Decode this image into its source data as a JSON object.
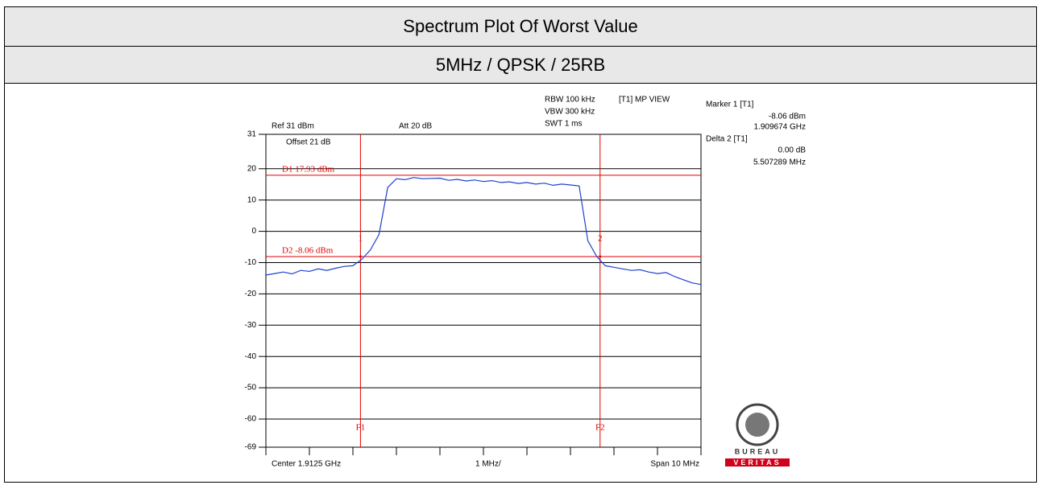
{
  "header": {
    "title": "Spectrum Plot Of Worst Value",
    "subtitle": "5MHz / QPSK / 25RB"
  },
  "chart_data": {
    "type": "line",
    "color": "#1f3fd0",
    "x": [
      1.9075,
      1.9077,
      1.9079,
      1.9081,
      1.9083,
      1.9085,
      1.9087,
      1.9089,
      1.9091,
      1.9093,
      1.9095,
      1.9097,
      1.9099,
      1.9101,
      1.9103,
      1.9105,
      1.9107,
      1.9109,
      1.9111,
      1.9113,
      1.9115,
      1.9117,
      1.9119,
      1.9121,
      1.9123,
      1.9125,
      1.9127,
      1.9129,
      1.9131,
      1.9133,
      1.9135,
      1.9137,
      1.9139,
      1.9141,
      1.9143,
      1.9145,
      1.9147,
      1.9149,
      1.9151,
      1.9153,
      1.9155,
      1.9157,
      1.9159,
      1.9161,
      1.9163,
      1.9165,
      1.9167,
      1.9169,
      1.9171,
      1.9173,
      1.9175
    ],
    "values": [
      -14,
      -13.5,
      -13,
      -13.6,
      -12.5,
      -12.8,
      -12,
      -12.5,
      -11.8,
      -11.2,
      -11,
      -9,
      -6,
      -1,
      14,
      16.8,
      16.5,
      17.2,
      16.8,
      16.9,
      17,
      16.3,
      16.6,
      16.1,
      16.4,
      15.9,
      16.2,
      15.6,
      15.8,
      15.3,
      15.6,
      15.1,
      15.4,
      14.7,
      15.1,
      14.8,
      14.5,
      -3,
      -8,
      -11,
      -11.5,
      -12,
      -12.5,
      -12.3,
      -13,
      -13.5,
      -13.2,
      -14.5,
      -15.5,
      -16.5,
      -17
    ],
    "xlim": [
      1.9075,
      1.9175
    ],
    "xticks": [
      1.9075,
      1.9085,
      1.9095,
      1.9105,
      1.9115,
      1.9125,
      1.9135,
      1.9145,
      1.9155,
      1.9165,
      1.9175
    ],
    "ylim": [
      -69,
      31
    ],
    "yticks": [
      31,
      20,
      10,
      0,
      -10,
      -20,
      -30,
      -40,
      -50,
      -60,
      -69
    ],
    "grid": true,
    "display_lines": [
      {
        "label": "D1 17.93 dBm",
        "value": 17.93
      },
      {
        "label": "D2 -8.06 dBm",
        "value": -8.06
      }
    ],
    "freq_lines": [
      {
        "label": "F1",
        "value": 1.909674
      },
      {
        "label": "F2",
        "value": 1.915181
      }
    ],
    "markers": [
      {
        "label": "1",
        "x": 1.909674,
        "y": -8.06
      },
      {
        "label": "2",
        "x": 1.915181,
        "y": -8.06
      }
    ],
    "annotations": {
      "ref": "Ref 31 dBm",
      "att": "Att  20 dB",
      "offset": "Offset 21 dB",
      "rbw": "RBW 100 kHz",
      "vbw": "VBW 300 kHz",
      "swt": "SWT 1 ms",
      "view": "[T1] MP VIEW",
      "marker1": "Marker 1 [T1]",
      "marker1_level": "-8.06 dBm",
      "marker1_freq": "1.909674 GHz",
      "delta2": "Delta 2 [T1]",
      "delta2_level": "0.00 dB",
      "delta2_freq": "5.507289 MHz",
      "center": "Center 1.9125 GHz",
      "div": "1 MHz/",
      "span": "Span 10 MHz"
    },
    "logo": {
      "top": "BUREAU",
      "bottom": "VERITAS"
    }
  }
}
